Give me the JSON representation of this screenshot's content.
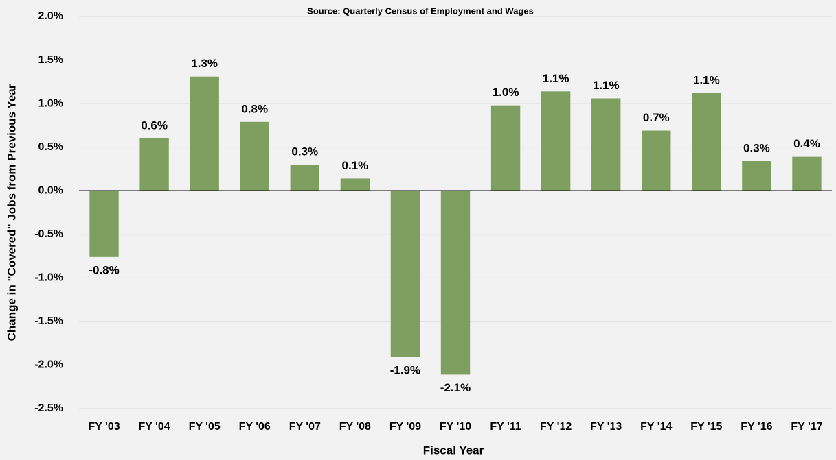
{
  "chart_data": {
    "type": "bar",
    "title": "Source: Quarterly Census of Employment and Wages",
    "x_label": "Fiscal Year",
    "y_label": "Change in \"Covered\" Jobs from Previous Year",
    "categories": [
      "FY '03",
      "FY '04",
      "FY '05",
      "FY '06",
      "FY '07",
      "FY '08",
      "FY '09",
      "FY '10",
      "FY '11",
      "FY '12",
      "FY '13",
      "FY '14",
      "FY '15",
      "FY '16",
      "FY '17"
    ],
    "values": [
      -0.76,
      0.6,
      1.31,
      0.79,
      0.3,
      0.14,
      -1.91,
      -2.11,
      0.98,
      1.14,
      1.06,
      0.69,
      1.12,
      0.34,
      0.39
    ],
    "value_labels": [
      "-0.8%",
      "0.6%",
      "1.3%",
      "0.8%",
      "0.3%",
      "0.1%",
      "-1.9%",
      "-2.1%",
      "1.0%",
      "1.1%",
      "1.1%",
      "0.7%",
      "1.1%",
      "0.3%",
      "0.4%"
    ],
    "color": "#7f9f60",
    "ylim": [
      -2.5,
      2.0
    ],
    "yticks": [
      {
        "value": -2.5,
        "label": "-2.5%"
      },
      {
        "value": -2.0,
        "label": "-2.0%"
      },
      {
        "value": -1.5,
        "label": "-1.5%"
      },
      {
        "value": -1.0,
        "label": "-1.0%"
      },
      {
        "value": -0.5,
        "label": "-0.5%"
      },
      {
        "value": 0,
        "label": "0.0%"
      },
      {
        "value": 0.5,
        "label": "0.5%"
      },
      {
        "value": 1.0,
        "label": "1.0%"
      },
      {
        "value": 1.5,
        "label": "1.5%"
      },
      {
        "value": 2.0,
        "label": "2.0%"
      }
    ],
    "grid": true
  }
}
